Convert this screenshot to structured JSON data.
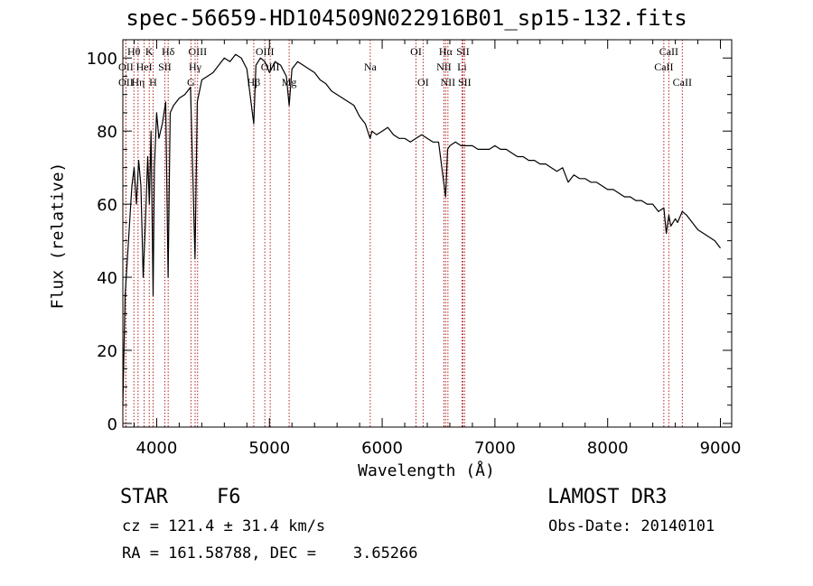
{
  "chart_data": {
    "type": "line",
    "title": "spec-56659-HD104509N022916B01_sp15-132.fits",
    "xlabel": "Wavelength (Å)",
    "ylabel": "Flux (relative)",
    "xlim": [
      3700,
      9100
    ],
    "ylim": [
      -1,
      105
    ],
    "xticks": [
      4000,
      5000,
      6000,
      7000,
      8000,
      9000
    ],
    "yticks": [
      0,
      20,
      40,
      60,
      80,
      100
    ],
    "series": [
      {
        "name": "spectrum",
        "x": [
          3700,
          3720,
          3740,
          3760,
          3780,
          3800,
          3820,
          3840,
          3860,
          3880,
          3900,
          3920,
          3935,
          3950,
          3968,
          3980,
          4000,
          4020,
          4050,
          4080,
          4101,
          4120,
          4150,
          4200,
          4250,
          4300,
          4340,
          4360,
          4380,
          4400,
          4450,
          4500,
          4550,
          4600,
          4650,
          4700,
          4750,
          4800,
          4861,
          4880,
          4920,
          4960,
          5000,
          5050,
          5100,
          5150,
          5175,
          5200,
          5250,
          5300,
          5350,
          5400,
          5450,
          5500,
          5550,
          5600,
          5650,
          5700,
          5750,
          5800,
          5850,
          5893,
          5910,
          5950,
          6000,
          6050,
          6100,
          6150,
          6200,
          6250,
          6300,
          6350,
          6400,
          6450,
          6500,
          6563,
          6580,
          6600,
          6650,
          6700,
          6750,
          6800,
          6850,
          6900,
          6950,
          7000,
          7050,
          7100,
          7150,
          7200,
          7250,
          7300,
          7350,
          7400,
          7450,
          7500,
          7550,
          7600,
          7650,
          7700,
          7750,
          7800,
          7850,
          7900,
          7950,
          8000,
          8050,
          8100,
          8150,
          8200,
          8250,
          8300,
          8350,
          8400,
          8450,
          8498,
          8520,
          8542,
          8560,
          8600,
          8620,
          8662,
          8700,
          8750,
          8800,
          8850,
          8900,
          8950,
          9000
        ],
        "y": [
          5,
          35,
          45,
          55,
          65,
          70,
          60,
          72,
          65,
          40,
          55,
          73,
          60,
          80,
          35,
          70,
          85,
          78,
          82,
          88,
          40,
          85,
          87,
          89,
          90,
          92,
          45,
          88,
          91,
          94,
          95,
          96,
          98,
          100,
          99,
          101,
          100,
          97,
          82,
          98,
          100,
          99,
          96,
          99,
          98,
          95,
          87,
          97,
          99,
          98,
          97,
          96,
          94,
          93,
          91,
          90,
          89,
          88,
          87,
          84,
          82,
          78,
          80,
          79,
          80,
          81,
          79,
          78,
          78,
          77,
          78,
          79,
          78,
          77,
          77,
          62,
          75,
          76,
          77,
          76,
          76,
          76,
          75,
          75,
          75,
          76,
          75,
          75,
          74,
          73,
          73,
          72,
          72,
          71,
          71,
          70,
          69,
          70,
          66,
          68,
          67,
          67,
          66,
          66,
          65,
          64,
          64,
          63,
          62,
          62,
          61,
          61,
          60,
          60,
          58,
          59,
          52,
          57,
          54,
          56,
          55,
          58,
          57,
          55,
          53,
          52,
          51,
          50,
          48
        ]
      }
    ],
    "lines": [
      {
        "name": "OII",
        "x": 3727,
        "row": 2
      },
      {
        "name": "OII",
        "x": 3727,
        "row": 3
      },
      {
        "name": "Hθ",
        "x": 3798,
        "row": 1
      },
      {
        "name": "Hη",
        "x": 3835,
        "row": 3
      },
      {
        "name": "HeI",
        "x": 3889,
        "row": 2
      },
      {
        "name": "K",
        "x": 3934,
        "row": 1
      },
      {
        "name": "H",
        "x": 3968,
        "row": 3
      },
      {
        "name": "SII",
        "x": 4072,
        "row": 2
      },
      {
        "name": "Hδ",
        "x": 4102,
        "row": 1
      },
      {
        "name": "G",
        "x": 4304,
        "row": 3
      },
      {
        "name": "OIII",
        "x": 4363,
        "row": 1
      },
      {
        "name": "Hγ",
        "x": 4341,
        "row": 2
      },
      {
        "name": "Hβ",
        "x": 4861,
        "row": 3
      },
      {
        "name": "OIII",
        "x": 4959,
        "row": 1
      },
      {
        "name": "OIII",
        "x": 5007,
        "row": 2
      },
      {
        "name": "Mg",
        "x": 5175,
        "row": 3
      },
      {
        "name": "Na",
        "x": 5894,
        "row": 2
      },
      {
        "name": "OI",
        "x": 6300,
        "row": 1
      },
      {
        "name": "OI",
        "x": 6363,
        "row": 3
      },
      {
        "name": "Hα",
        "x": 6563,
        "row": 1
      },
      {
        "name": "NII",
        "x": 6548,
        "row": 2
      },
      {
        "name": "NII",
        "x": 6583,
        "row": 3
      },
      {
        "name": "SII",
        "x": 6716,
        "row": 1
      },
      {
        "name": "Li",
        "x": 6708,
        "row": 2
      },
      {
        "name": "SII",
        "x": 6731,
        "row": 3
      },
      {
        "name": "CaII",
        "x": 8498,
        "row": 2
      },
      {
        "name": "CaII",
        "x": 8542,
        "row": 1
      },
      {
        "name": "CaII",
        "x": 8662,
        "row": 3
      }
    ]
  },
  "info": {
    "object_class": "STAR",
    "subclass": "F6",
    "survey": "LAMOST DR3",
    "cz": "cz = 121.4 ± 31.4 km/s",
    "obs_date": "Obs-Date: 20140101",
    "coords": "RA = 161.58788, DEC =    3.65266"
  },
  "colors": {
    "spectrum": "#000000",
    "line_marker": "#b22222",
    "background": "#ffffff"
  }
}
